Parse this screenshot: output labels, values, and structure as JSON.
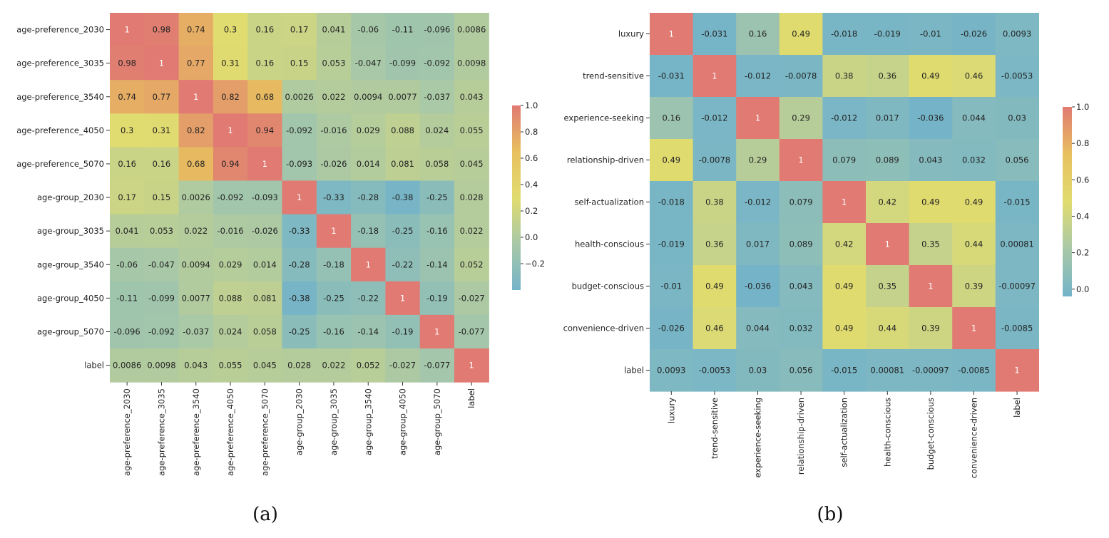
{
  "chart_data": [
    {
      "type": "heatmap",
      "panel_caption": "(a)",
      "labels": [
        "age-preference_2030",
        "age-preference_3035",
        "age-preference_3540",
        "age-preference_4050",
        "age-preference_5070",
        "age-group_2030",
        "age-group_3035",
        "age-group_3540",
        "age-group_4050",
        "age-group_5070",
        "label"
      ],
      "cell_labels": [
        [
          "1",
          "0.98",
          "0.74",
          "0.3",
          "0.16",
          "0.17",
          "0.041",
          "-0.06",
          "-0.11",
          "-0.096",
          "0.0086"
        ],
        [
          "0.98",
          "1",
          "0.77",
          "0.31",
          "0.16",
          "0.15",
          "0.053",
          "-0.047",
          "-0.099",
          "-0.092",
          "0.0098"
        ],
        [
          "0.74",
          "0.77",
          "1",
          "0.82",
          "0.68",
          "0.0026",
          "0.022",
          "0.0094",
          "0.0077",
          "-0.037",
          "0.043"
        ],
        [
          "0.3",
          "0.31",
          "0.82",
          "1",
          "0.94",
          "-0.092",
          "-0.016",
          "0.029",
          "0.088",
          "0.024",
          "0.055"
        ],
        [
          "0.16",
          "0.16",
          "0.68",
          "0.94",
          "1",
          "-0.093",
          "-0.026",
          "0.014",
          "0.081",
          "0.058",
          "0.045"
        ],
        [
          "0.17",
          "0.15",
          "0.0026",
          "-0.092",
          "-0.093",
          "1",
          "-0.33",
          "-0.28",
          "-0.38",
          "-0.25",
          "0.028"
        ],
        [
          "0.041",
          "0.053",
          "0.022",
          "-0.016",
          "-0.026",
          "-0.33",
          "1",
          "-0.18",
          "-0.25",
          "-0.16",
          "0.022"
        ],
        [
          "-0.06",
          "-0.047",
          "0.0094",
          "0.029",
          "0.014",
          "-0.28",
          "-0.18",
          "1",
          "-0.22",
          "-0.14",
          "0.052"
        ],
        [
          "-0.11",
          "-0.099",
          "0.0077",
          "0.088",
          "0.081",
          "-0.38",
          "-0.25",
          "-0.22",
          "1",
          "-0.19",
          "-0.027"
        ],
        [
          "-0.096",
          "-0.092",
          "-0.037",
          "0.024",
          "0.058",
          "-0.25",
          "-0.16",
          "-0.14",
          "-0.19",
          "1",
          "-0.077"
        ],
        [
          "0.0086",
          "0.0098",
          "0.043",
          "0.055",
          "0.045",
          "0.028",
          "0.022",
          "0.052",
          "-0.027",
          "-0.077",
          "1"
        ]
      ],
      "colorbar": {
        "min": -0.4,
        "max": 1.0,
        "ticks": [
          1.0,
          0.8,
          0.6,
          0.4,
          0.2,
          0.0,
          -0.2
        ],
        "tick_labels": [
          "1.0",
          "0.8",
          "0.6",
          "0.4",
          "0.2",
          "0.0",
          "−0.2"
        ]
      }
    },
    {
      "type": "heatmap",
      "panel_caption": "(b)",
      "labels": [
        "luxury",
        "trend-sensitive",
        "experience-seeking",
        "relationship-driven",
        "self-actualization",
        "health-conscious",
        "budget-conscious",
        "convenience-driven",
        "label"
      ],
      "cell_labels": [
        [
          "1",
          "-0.031",
          "0.16",
          "0.49",
          "-0.018",
          "-0.019",
          "-0.01",
          "-0.026",
          "0.0093"
        ],
        [
          "-0.031",
          "1",
          "-0.012",
          "-0.0078",
          "0.38",
          "0.36",
          "0.49",
          "0.46",
          "-0.0053"
        ],
        [
          "0.16",
          "-0.012",
          "1",
          "0.29",
          "-0.012",
          "0.017",
          "-0.036",
          "0.044",
          "0.03"
        ],
        [
          "0.49",
          "-0.0078",
          "0.29",
          "1",
          "0.079",
          "0.089",
          "0.043",
          "0.032",
          "0.056"
        ],
        [
          "-0.018",
          "0.38",
          "-0.012",
          "0.079",
          "1",
          "0.42",
          "0.49",
          "0.49",
          "-0.015"
        ],
        [
          "-0.019",
          "0.36",
          "0.017",
          "0.089",
          "0.42",
          "1",
          "0.35",
          "0.44",
          "0.00081"
        ],
        [
          "-0.01",
          "0.49",
          "-0.036",
          "0.043",
          "0.49",
          "0.35",
          "1",
          "0.39",
          "-0.00097"
        ],
        [
          "-0.026",
          "0.46",
          "0.044",
          "0.032",
          "0.49",
          "0.44",
          "0.39",
          "1",
          "-0.0085"
        ],
        [
          "0.0093",
          "-0.0053",
          "0.03",
          "0.056",
          "-0.015",
          "0.00081",
          "-0.00097",
          "-0.0085",
          "1"
        ]
      ],
      "colorbar": {
        "min": -0.04,
        "max": 1.0,
        "ticks": [
          1.0,
          0.8,
          0.6,
          0.4,
          0.2,
          0.0
        ],
        "tick_labels": [
          "1.0",
          "0.8",
          "0.6",
          "0.4",
          "0.2",
          "0.0"
        ]
      }
    }
  ],
  "colors": {
    "stops": [
      "#74b4c8",
      "#a8c8a8",
      "#e0dc70",
      "#e8c060",
      "#e07a72"
    ]
  }
}
